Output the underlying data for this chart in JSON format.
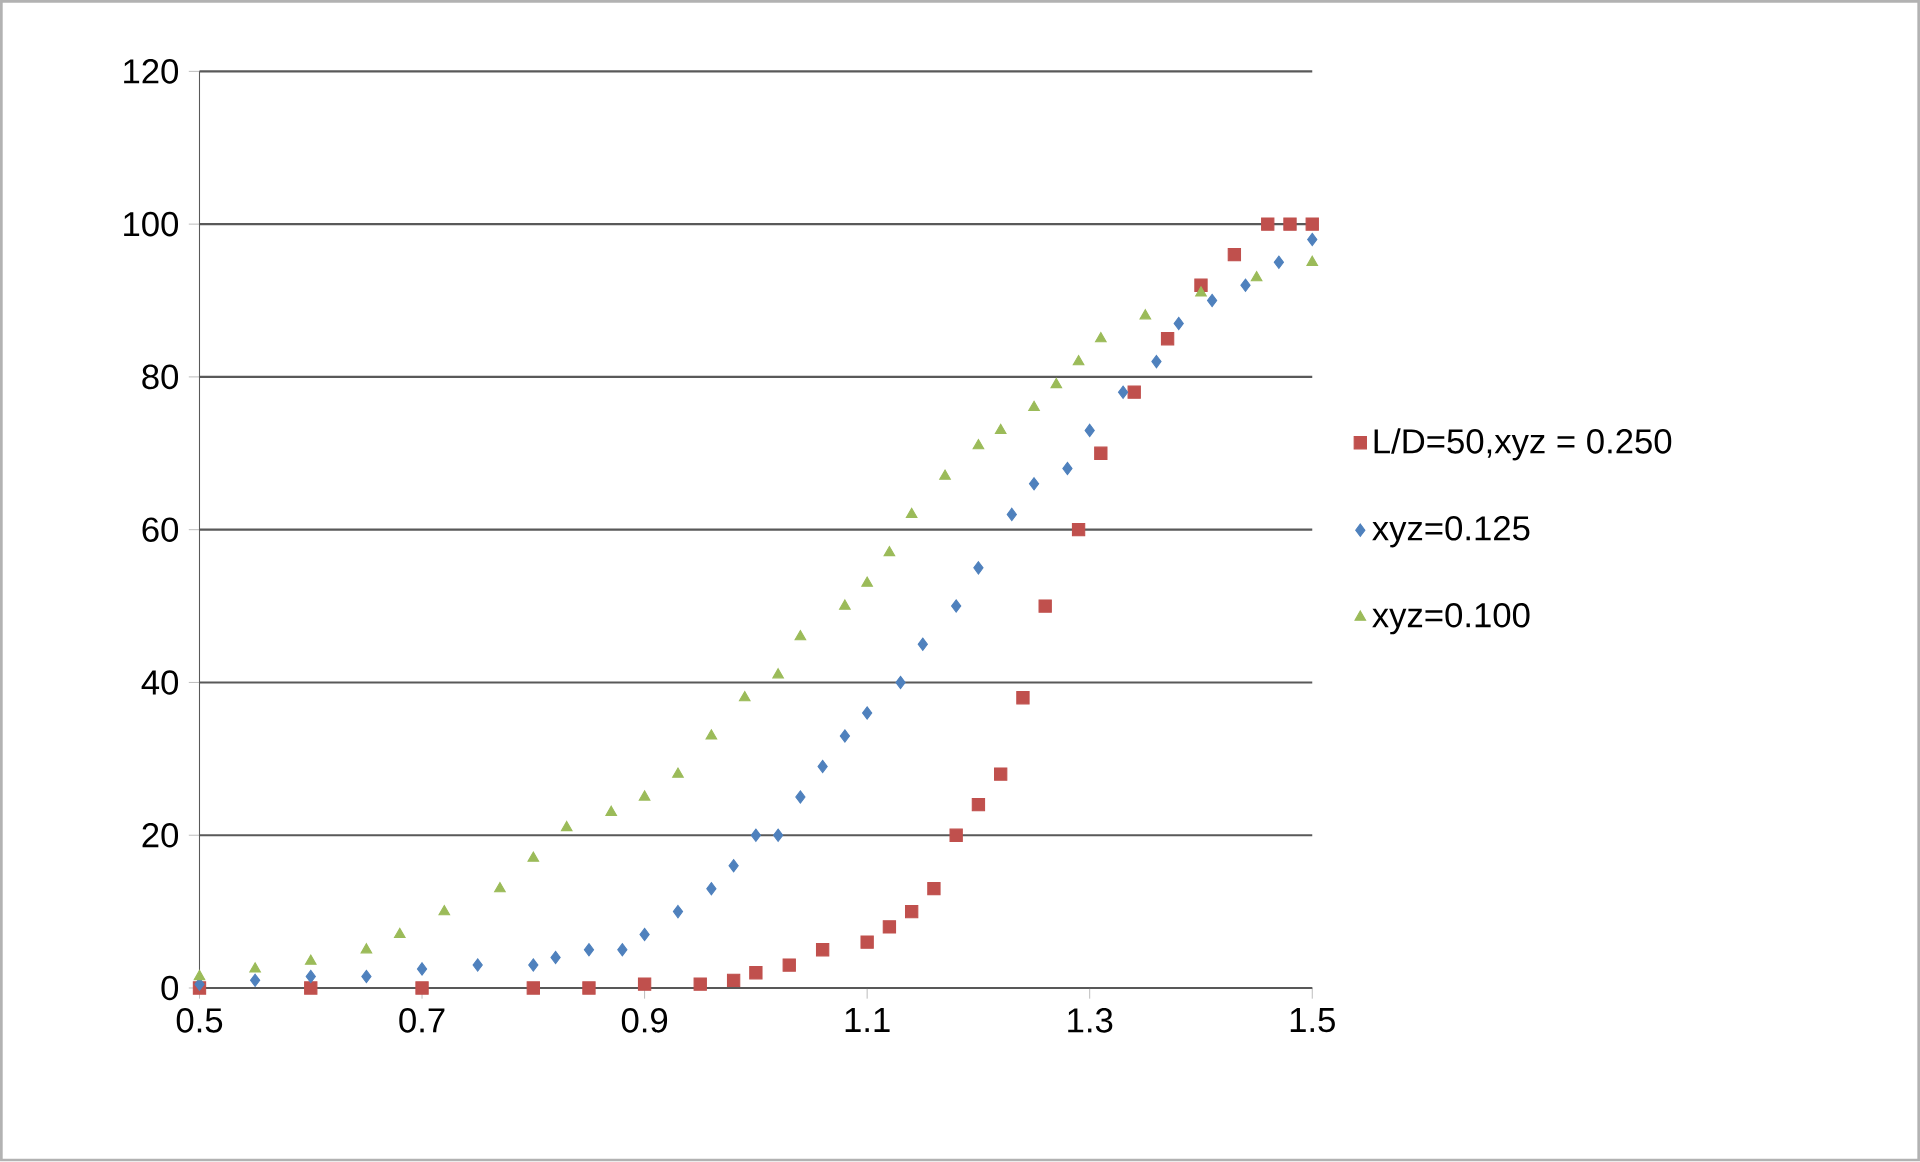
{
  "chart_data": {
    "type": "scatter",
    "xlim": [
      0.5,
      1.5
    ],
    "xticks": [
      0.5,
      0.7,
      0.9,
      1.1,
      1.3,
      1.5
    ],
    "ylim": [
      0,
      120
    ],
    "yticks": [
      0,
      20,
      40,
      60,
      80,
      100,
      120
    ],
    "grid": "y",
    "legend": "right",
    "series": [
      {
        "name": "L/D=50,xyz = 0.250",
        "color": "#c0504d",
        "marker": "square",
        "x": [
          0.5,
          0.6,
          0.7,
          0.8,
          0.85,
          0.9,
          0.95,
          0.98,
          1.0,
          1.03,
          1.06,
          1.1,
          1.12,
          1.14,
          1.16,
          1.18,
          1.2,
          1.22,
          1.24,
          1.26,
          1.29,
          1.31,
          1.34,
          1.37,
          1.4,
          1.43,
          1.46,
          1.48,
          1.5
        ],
        "values": [
          0,
          0,
          0,
          0,
          0,
          0.5,
          0.5,
          1,
          2,
          3,
          5,
          6,
          8,
          10,
          13,
          20,
          24,
          28,
          38,
          50,
          60,
          70,
          78,
          85,
          92,
          96,
          100,
          100,
          100
        ]
      },
      {
        "name": "xyz=0.125",
        "color": "#4f81bd",
        "marker": "diamond",
        "x": [
          0.5,
          0.55,
          0.6,
          0.65,
          0.7,
          0.75,
          0.8,
          0.82,
          0.85,
          0.88,
          0.9,
          0.93,
          0.96,
          0.98,
          1.0,
          1.02,
          1.04,
          1.06,
          1.08,
          1.1,
          1.13,
          1.15,
          1.18,
          1.2,
          1.23,
          1.25,
          1.28,
          1.3,
          1.33,
          1.36,
          1.38,
          1.41,
          1.44,
          1.47,
          1.5
        ],
        "values": [
          0.5,
          1,
          1.5,
          1.5,
          2.5,
          3,
          3,
          4,
          5,
          5,
          7,
          10,
          13,
          16,
          20,
          20,
          25,
          29,
          33,
          36,
          40,
          45,
          50,
          55,
          62,
          66,
          68,
          73,
          78,
          82,
          87,
          90,
          92,
          95,
          98
        ]
      },
      {
        "name": "xyz=0.100",
        "color": "#9bbb59",
        "marker": "triangle",
        "x": [
          0.5,
          0.55,
          0.6,
          0.65,
          0.68,
          0.72,
          0.77,
          0.8,
          0.83,
          0.87,
          0.9,
          0.93,
          0.96,
          0.99,
          1.02,
          1.04,
          1.08,
          1.1,
          1.12,
          1.14,
          1.17,
          1.2,
          1.22,
          1.25,
          1.27,
          1.29,
          1.31,
          1.35,
          1.4,
          1.45,
          1.5
        ],
        "values": [
          1.5,
          2.5,
          3.5,
          5,
          7,
          10,
          13,
          17,
          21,
          23,
          25,
          28,
          33,
          38,
          41,
          46,
          50,
          53,
          57,
          62,
          67,
          71,
          73,
          76,
          79,
          82,
          85,
          88,
          91,
          93,
          95
        ]
      }
    ]
  }
}
